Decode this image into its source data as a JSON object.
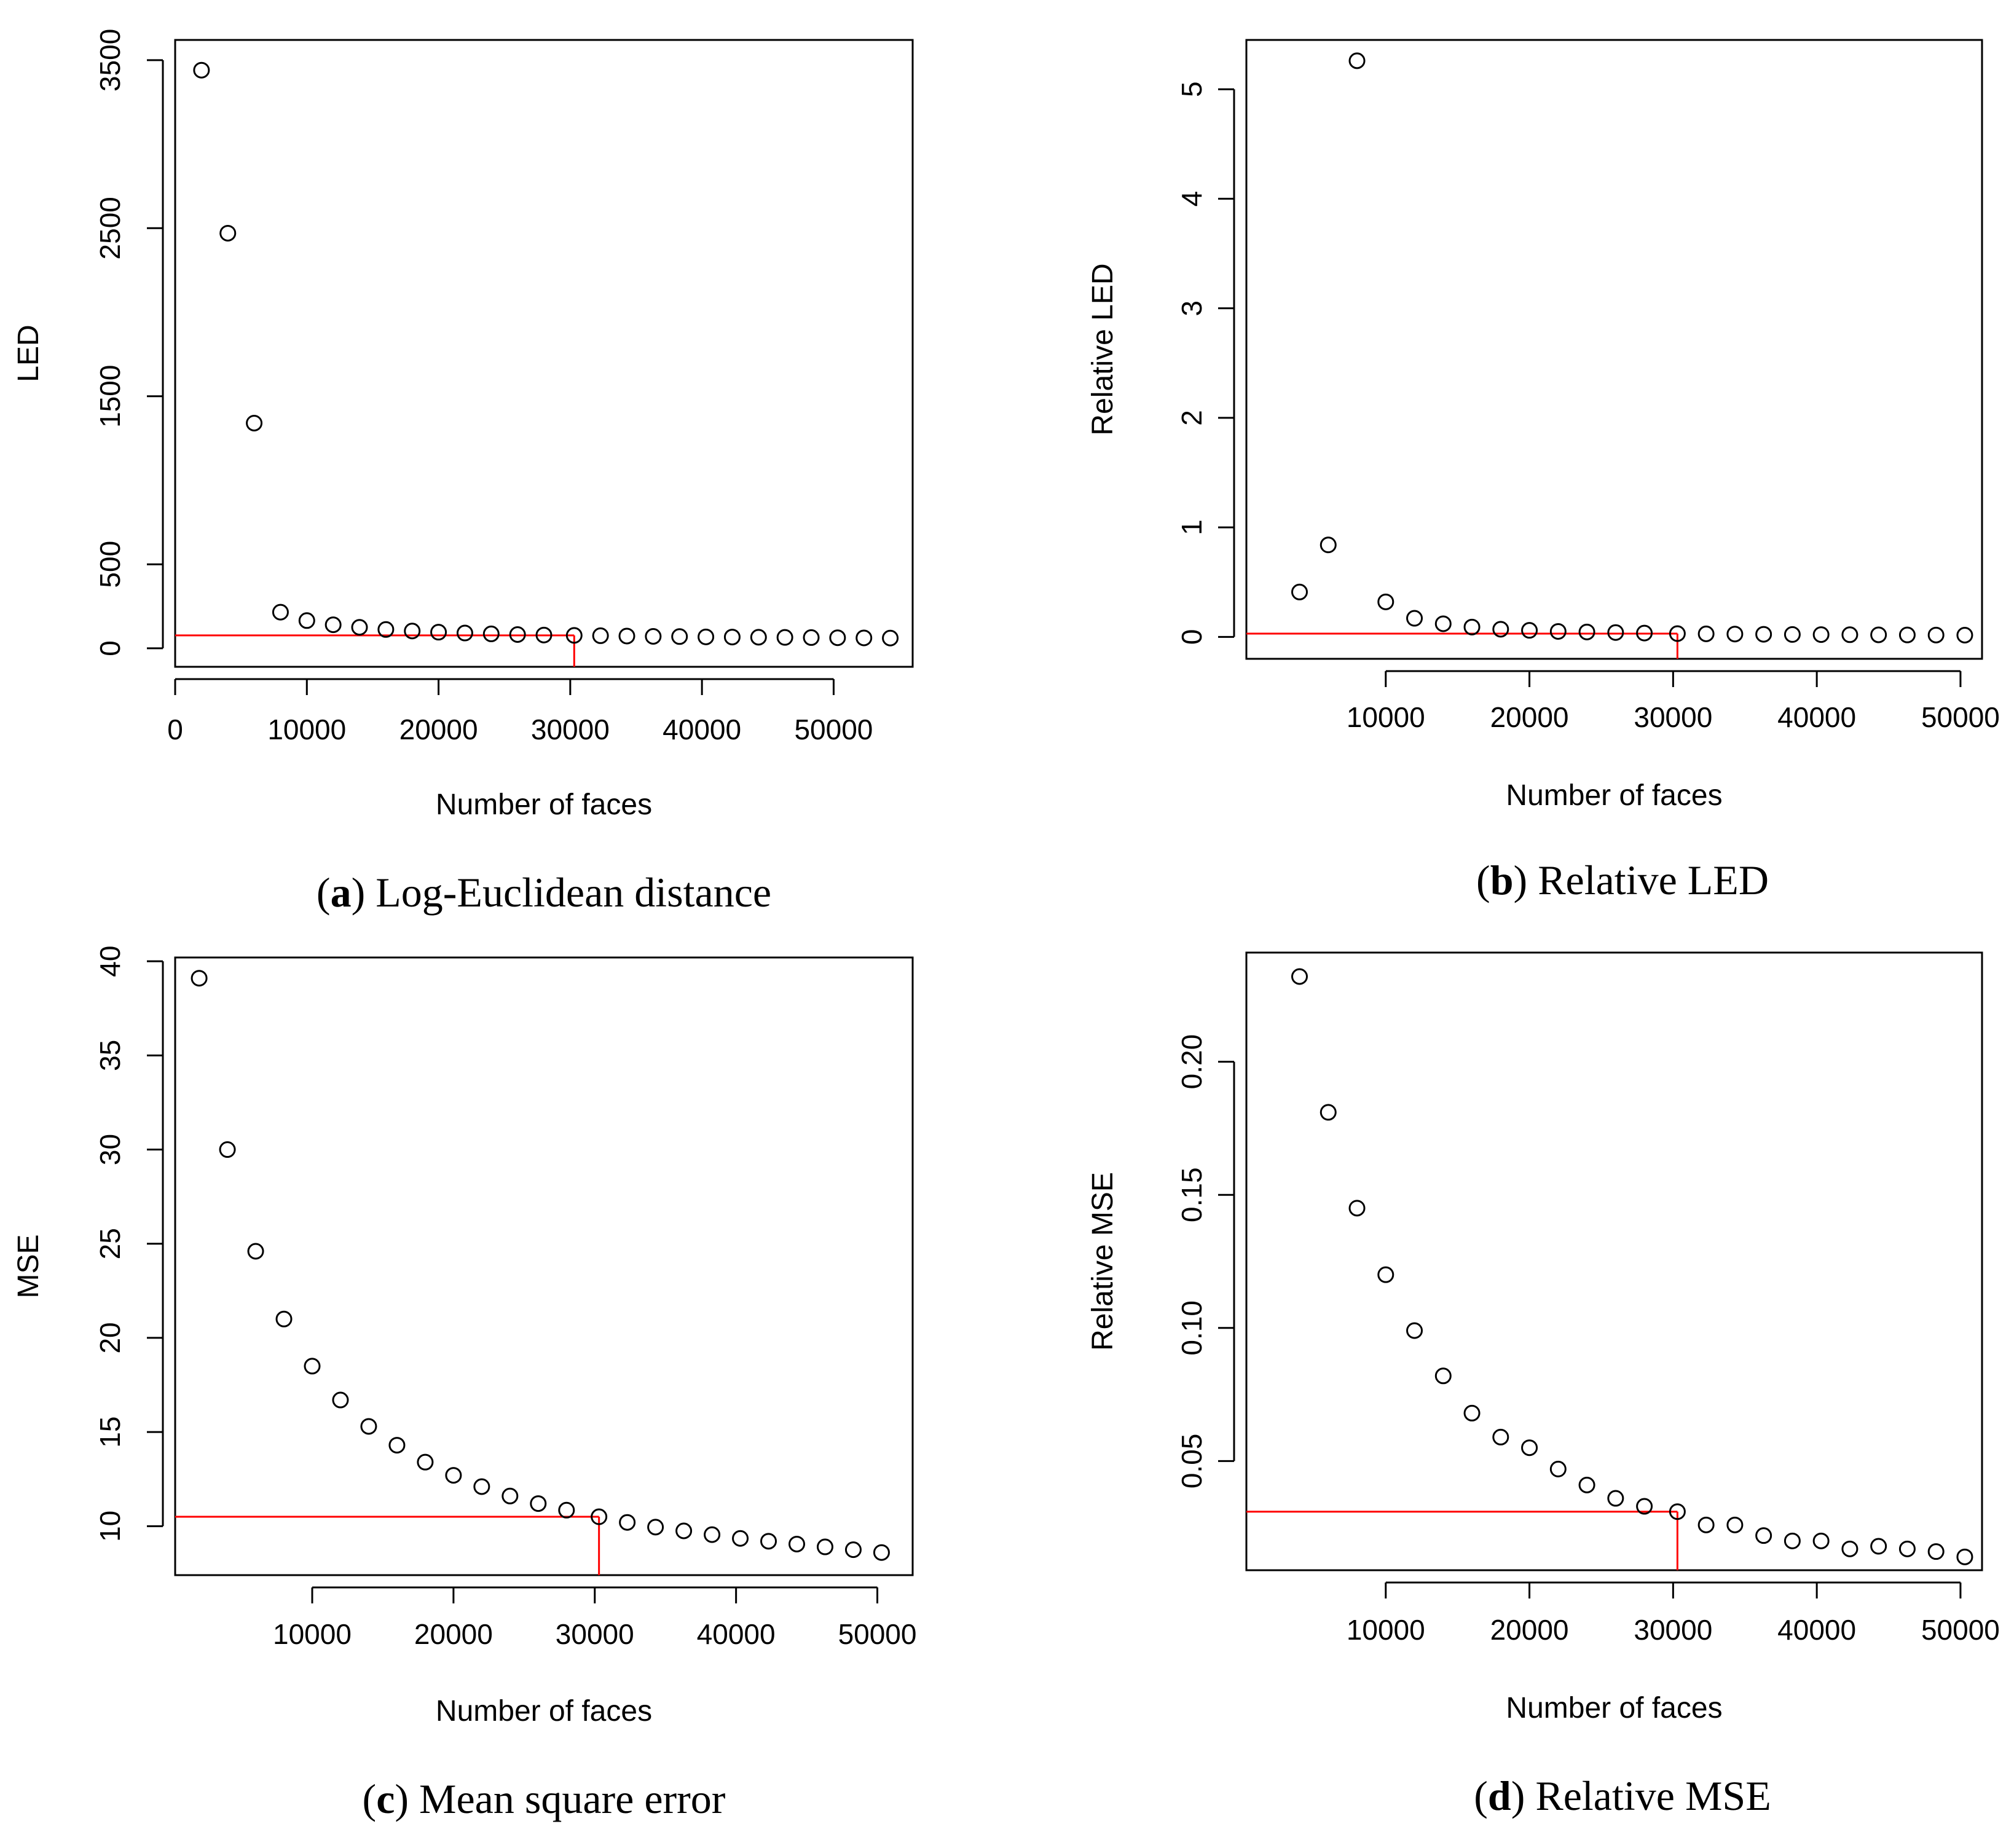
{
  "chart_data": [
    {
      "id": "a",
      "type": "scatter",
      "caption_letter": "a",
      "caption_text": "Log-Euclidean distance",
      "xlabel": "Number of faces",
      "ylabel": "LED",
      "xlim": [
        0,
        56000
      ],
      "ylim": [
        -110,
        3620
      ],
      "xticks": [
        0,
        10000,
        20000,
        30000,
        40000,
        50000
      ],
      "xtick_labels": [
        "0",
        "10000",
        "20000",
        "30000",
        "40000",
        "50000"
      ],
      "yticks": [
        0,
        500,
        1500,
        2500,
        3500
      ],
      "ytick_labels": [
        "0",
        "500",
        "1500",
        "2500",
        "3500"
      ],
      "x": [
        2000,
        4000,
        6000,
        8000,
        10000,
        12000,
        14000,
        16000,
        18000,
        20000,
        22000,
        24000,
        26000,
        28000,
        30300,
        32300,
        34300,
        36300,
        38300,
        40300,
        42300,
        44300,
        46300,
        48300,
        50300,
        52300,
        54300
      ],
      "y": [
        3440,
        2470,
        1340,
        215,
        165,
        140,
        125,
        112,
        103,
        96,
        91,
        86,
        82,
        79,
        77,
        75,
        73,
        71,
        70,
        68,
        67,
        66,
        65,
        64,
        63,
        62,
        61
      ],
      "threshold": {
        "x": 30300,
        "y": 77,
        "color": "#ff0000"
      }
    },
    {
      "id": "b",
      "type": "scatter",
      "caption_letter": "b",
      "caption_text": "Relative LED",
      "xlabel": "Number of faces",
      "ylabel": "Relative LED",
      "xlim": [
        300,
        51500
      ],
      "ylim": [
        -0.2,
        5.45
      ],
      "xticks": [
        10000,
        20000,
        30000,
        40000,
        50000
      ],
      "xtick_labels": [
        "10000",
        "20000",
        "30000",
        "40000",
        "50000"
      ],
      "yticks": [
        0,
        1,
        2,
        3,
        4,
        5
      ],
      "ytick_labels": [
        "0",
        "1",
        "2",
        "3",
        "4",
        "5"
      ],
      "x": [
        4000,
        6000,
        8000,
        10000,
        12000,
        14000,
        16000,
        18000,
        20000,
        22000,
        24000,
        26000,
        28000,
        30300,
        32300,
        34300,
        36300,
        38300,
        40300,
        42300,
        44300,
        46300,
        48300,
        50300
      ],
      "y": [
        0.41,
        0.84,
        5.26,
        0.32,
        0.17,
        0.12,
        0.09,
        0.07,
        0.06,
        0.05,
        0.045,
        0.04,
        0.035,
        0.03,
        0.028,
        0.026,
        0.024,
        0.022,
        0.021,
        0.02,
        0.019,
        0.018,
        0.017,
        0.016
      ],
      "threshold": {
        "x": 30300,
        "y": 0.03,
        "color": "#ff0000"
      }
    },
    {
      "id": "c",
      "type": "scatter",
      "caption_letter": "c",
      "caption_text": "Mean square error",
      "xlabel": "Number of faces",
      "ylabel": "MSE",
      "xlim": [
        300,
        52500
      ],
      "ylim": [
        7.4,
        40.2
      ],
      "xticks": [
        10000,
        20000,
        30000,
        40000,
        50000
      ],
      "xtick_labels": [
        "10000",
        "20000",
        "30000",
        "40000",
        "50000"
      ],
      "yticks": [
        10,
        15,
        20,
        25,
        30,
        35,
        40
      ],
      "ytick_labels": [
        "10",
        "15",
        "20",
        "25",
        "30",
        "35",
        "40"
      ],
      "x": [
        2000,
        4000,
        6000,
        8000,
        10000,
        12000,
        14000,
        16000,
        18000,
        20000,
        22000,
        24000,
        26000,
        28000,
        30300,
        32300,
        34300,
        36300,
        38300,
        40300,
        42300,
        44300,
        46300,
        48300,
        50300
      ],
      "y": [
        39.1,
        30,
        24.6,
        21,
        18.5,
        16.7,
        15.3,
        14.3,
        13.4,
        12.7,
        12.1,
        11.6,
        11.2,
        10.85,
        10.5,
        10.2,
        9.95,
        9.75,
        9.55,
        9.35,
        9.2,
        9.05,
        8.9,
        8.75,
        8.6
      ],
      "threshold": {
        "x": 30300,
        "y": 10.5,
        "color": "#ff0000"
      }
    },
    {
      "id": "d",
      "type": "scatter",
      "caption_letter": "d",
      "caption_text": "Relative MSE",
      "xlabel": "Number of faces",
      "ylabel": "Relative MSE",
      "xlim": [
        300,
        51500
      ],
      "ylim": [
        0.009,
        0.241
      ],
      "xticks": [
        10000,
        20000,
        30000,
        40000,
        50000
      ],
      "xtick_labels": [
        "10000",
        "20000",
        "30000",
        "40000",
        "50000"
      ],
      "yticks": [
        0.05,
        0.1,
        0.15,
        0.2
      ],
      "ytick_labels": [
        "0.05",
        "0.10",
        "0.15",
        "0.20"
      ],
      "x": [
        4000,
        6000,
        8000,
        10000,
        12000,
        14000,
        16000,
        18000,
        20000,
        22000,
        24000,
        26000,
        28000,
        30300,
        32300,
        34300,
        36300,
        38300,
        40300,
        42300,
        44300,
        46300,
        48300,
        50300
      ],
      "y": [
        0.232,
        0.181,
        0.145,
        0.12,
        0.099,
        0.082,
        0.068,
        0.059,
        0.055,
        0.047,
        0.041,
        0.036,
        0.033,
        0.031,
        0.026,
        0.026,
        0.022,
        0.02,
        0.02,
        0.017,
        0.018,
        0.017,
        0.016,
        0.014
      ],
      "threshold": {
        "x": 30300,
        "y": 0.031,
        "color": "#ff0000"
      }
    }
  ]
}
